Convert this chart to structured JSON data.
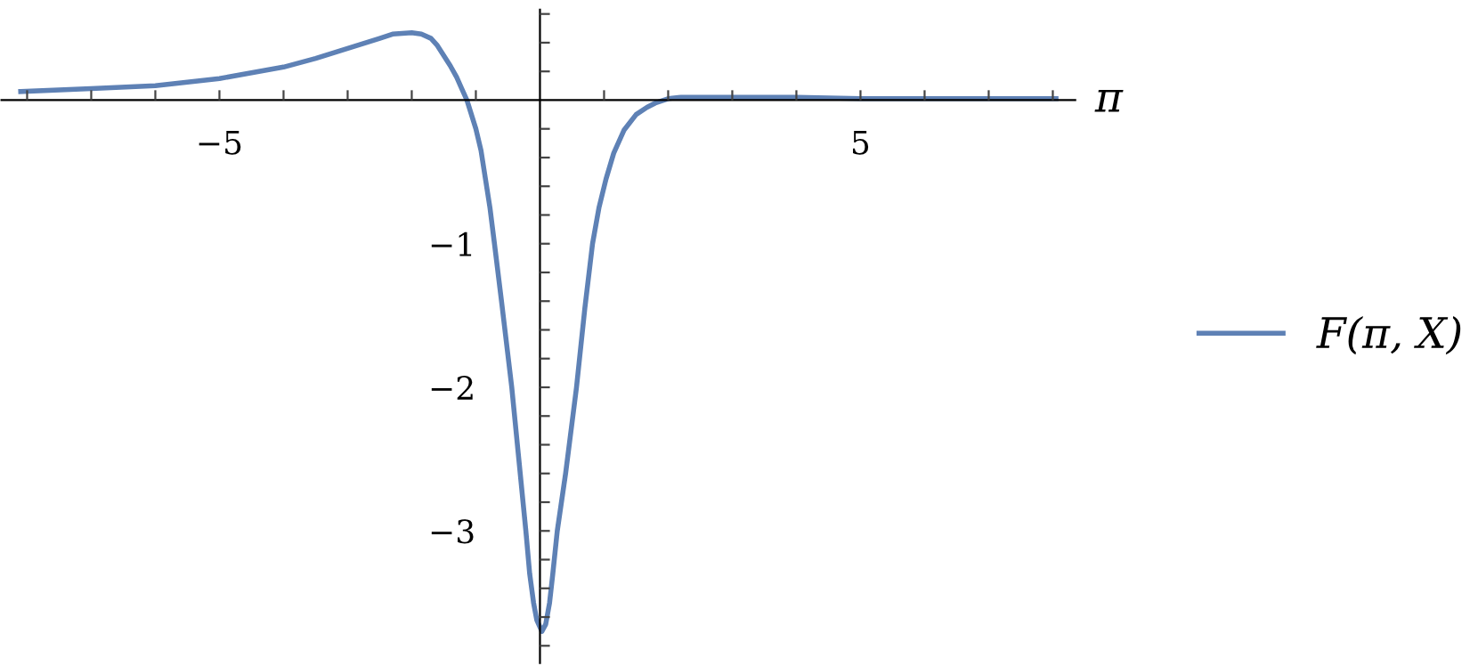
{
  "chart_data": {
    "type": "line",
    "xlabel": "π",
    "x": [
      -8.1,
      -7,
      -6,
      -5,
      -4,
      -3.5,
      -3,
      -2.5,
      -2.3,
      -2,
      -1.85,
      -1.7,
      -1.6,
      -1.5,
      -1.4,
      -1.3,
      -1.22,
      -1.14,
      -1.0,
      -0.92,
      -0.85,
      -0.78,
      -0.71,
      -0.6,
      -0.44,
      -0.33,
      -0.22,
      -0.16,
      -0.1,
      -0.05,
      0.03,
      0.09,
      0.15,
      0.2,
      0.27,
      0.4,
      0.57,
      0.7,
      0.82,
      0.92,
      1.03,
      1.15,
      1.31,
      1.5,
      1.67,
      1.8,
      2.0,
      2.2,
      2.5,
      3,
      4,
      5,
      6,
      7,
      8.05
    ],
    "series": [
      {
        "name": "F(π, X)",
        "color": "#5e81b5",
        "values": [
          0.06,
          0.08,
          0.1,
          0.15,
          0.23,
          0.29,
          0.36,
          0.43,
          0.46,
          0.47,
          0.46,
          0.43,
          0.38,
          0.31,
          0.24,
          0.16,
          0.08,
          0,
          -0.2,
          -0.35,
          -0.55,
          -0.75,
          -1,
          -1.4,
          -2,
          -2.5,
          -3,
          -3.3,
          -3.5,
          -3.62,
          -3.7,
          -3.65,
          -3.5,
          -3.3,
          -3,
          -2.6,
          -2,
          -1.45,
          -1,
          -0.75,
          -0.55,
          -0.37,
          -0.21,
          -0.1,
          -0.05,
          -0.02,
          0.01,
          0.02,
          0.02,
          0.02,
          0.02,
          0.01,
          0.01,
          0.01,
          0.01
        ]
      }
    ],
    "xlim": [
      -8.4,
      8.35
    ],
    "ylim": [
      -3.92,
      0.63
    ],
    "xticks": [
      {
        "value": -8,
        "label": null
      },
      {
        "value": -7,
        "label": null
      },
      {
        "value": -6,
        "label": null
      },
      {
        "value": -5,
        "label": "−5"
      },
      {
        "value": -4,
        "label": null
      },
      {
        "value": -3,
        "label": null
      },
      {
        "value": -2,
        "label": null
      },
      {
        "value": -1,
        "label": null
      },
      {
        "value": 1,
        "label": null
      },
      {
        "value": 2,
        "label": null
      },
      {
        "value": 3,
        "label": null
      },
      {
        "value": 4,
        "label": null
      },
      {
        "value": 5,
        "label": "5"
      },
      {
        "value": 6,
        "label": null
      },
      {
        "value": 7,
        "label": null
      },
      {
        "value": 8,
        "label": null
      }
    ],
    "yticks": [
      {
        "value": -3.8,
        "label": null
      },
      {
        "value": -3.6,
        "label": null
      },
      {
        "value": -3.4,
        "label": null
      },
      {
        "value": -3.2,
        "label": null
      },
      {
        "value": -3,
        "label": "−3"
      },
      {
        "value": -2.8,
        "label": null
      },
      {
        "value": -2.6,
        "label": null
      },
      {
        "value": -2.4,
        "label": null
      },
      {
        "value": -2.2,
        "label": null
      },
      {
        "value": -2,
        "label": "−2"
      },
      {
        "value": -1.8,
        "label": null
      },
      {
        "value": -1.6,
        "label": null
      },
      {
        "value": -1.4,
        "label": null
      },
      {
        "value": -1.2,
        "label": null
      },
      {
        "value": -1,
        "label": "−1"
      },
      {
        "value": -0.8,
        "label": null
      },
      {
        "value": -0.6,
        "label": null
      },
      {
        "value": -0.4,
        "label": null
      },
      {
        "value": -0.2,
        "label": null
      },
      {
        "value": 0.2,
        "label": null
      },
      {
        "value": 0.4,
        "label": null
      },
      {
        "value": 0.6,
        "label": null
      }
    ],
    "grid": false,
    "legend": "right",
    "marker": "none",
    "line_style": "solid"
  }
}
